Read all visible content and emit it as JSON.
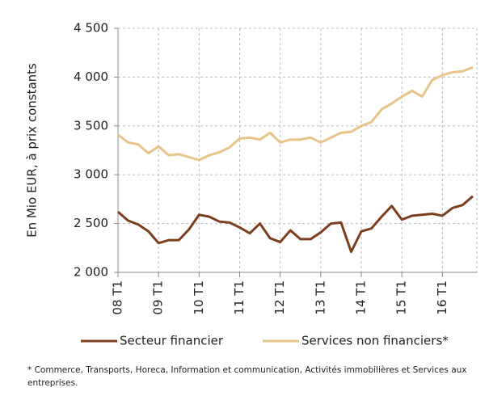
{
  "chart_data": {
    "type": "line",
    "ylabel": "En Mio EUR, à prix constants",
    "categories": [
      "08 T1",
      null,
      null,
      null,
      "09 T1",
      null,
      null,
      null,
      "10 T1",
      null,
      null,
      null,
      "11 T1",
      null,
      null,
      null,
      "12 T1",
      null,
      null,
      null,
      "13 T1",
      null,
      null,
      null,
      "14 T1",
      null,
      null,
      null,
      "15 T1",
      null,
      null,
      null,
      "16 T1",
      null,
      null,
      null
    ],
    "series": [
      {
        "name": "Secteur financier",
        "color": "#7b3f1e",
        "values": [
          2620,
          2530,
          2490,
          2420,
          2300,
          2330,
          2330,
          2440,
          2590,
          2570,
          2520,
          2510,
          2460,
          2400,
          2500,
          2350,
          2310,
          2430,
          2340,
          2340,
          2410,
          2500,
          2510,
          2210,
          2420,
          2450,
          2570,
          2680,
          2540,
          2580,
          2590,
          2600,
          2580,
          2660,
          2690,
          2780
        ]
      },
      {
        "name": "Services non financiers*",
        "color": "#e8c48b",
        "values": [
          3410,
          3330,
          3310,
          3220,
          3290,
          3200,
          3210,
          3180,
          3150,
          3200,
          3230,
          3280,
          3370,
          3380,
          3360,
          3430,
          3330,
          3360,
          3360,
          3380,
          3330,
          3380,
          3430,
          3440,
          3500,
          3540,
          3670,
          3730,
          3800,
          3860,
          3800,
          3970,
          4020,
          4050,
          4060,
          4100
        ]
      }
    ],
    "ylim": [
      2000,
      4500
    ],
    "yticks": [
      {
        "value": 2000,
        "label": "2 000"
      },
      {
        "value": 2500,
        "label": "2 500"
      },
      {
        "value": 3000,
        "label": "3 000"
      },
      {
        "value": 3500,
        "label": "3 500"
      },
      {
        "value": 4000,
        "label": "4 000"
      },
      {
        "value": 4500,
        "label": "4 500"
      }
    ],
    "grid": true,
    "legend": "bottom",
    "footnote": "* Commerce, Transports, Horeca, Information et communication, Activités immobilières et Services aux entreprises."
  }
}
